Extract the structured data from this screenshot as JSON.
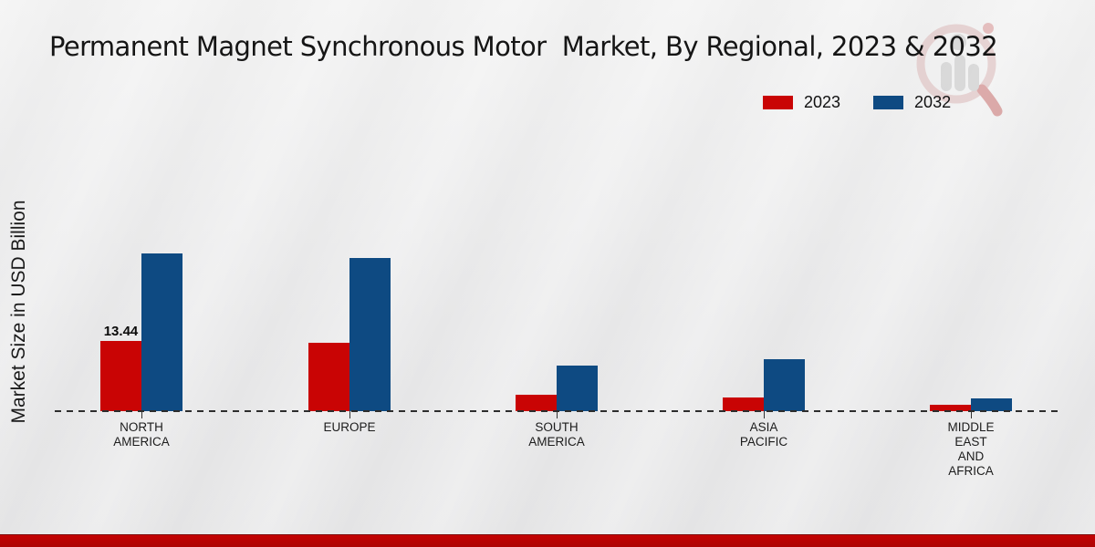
{
  "title": "Permanent Magnet Synchronous Motor  Market, By Regional, 2023 & 2032",
  "y_axis_label": "Market Size in USD Billion",
  "legend": {
    "position": "top-right",
    "items": [
      {
        "label": "2023",
        "color": "#c90404"
      },
      {
        "label": "2032",
        "color": "#0e4a82"
      }
    ]
  },
  "watermark_icon": "magnifier-bar-chart-logo",
  "footer_color": "#b30303",
  "chart_data": {
    "type": "bar",
    "title": "Permanent Magnet Synchronous Motor  Market, By Regional, 2023 & 2032",
    "xlabel": "",
    "ylabel": "Market Size in USD Billion",
    "categories": [
      "NORTH AMERICA",
      "EUROPE",
      "SOUTH AMERICA",
      "ASIA PACIFIC",
      "MIDDLE EAST AND AFRICA"
    ],
    "category_label_lines": [
      [
        "NORTH",
        "AMERICA"
      ],
      [
        "EUROPE"
      ],
      [
        "SOUTH",
        "AMERICA"
      ],
      [
        "ASIA",
        "PACIFIC"
      ],
      [
        "MIDDLE",
        "EAST",
        "AND",
        "AFRICA"
      ]
    ],
    "series": [
      {
        "name": "2023",
        "color": "#c90404",
        "values": [
          13.44,
          13.1,
          3.1,
          2.6,
          1.2
        ]
      },
      {
        "name": "2032",
        "color": "#0e4a82",
        "values": [
          30.2,
          29.3,
          8.7,
          9.9,
          2.4
        ]
      }
    ],
    "data_labels": [
      {
        "series": "2023",
        "category": "NORTH AMERICA",
        "text": "13.44"
      }
    ],
    "ylim": [
      0,
      35
    ],
    "grid": false,
    "y_ticks_visible": false,
    "baseline_style": "dashed",
    "legend_position": "top-right",
    "note": "Only 13.44 is printed on the chart; remaining values estimated from bar heights."
  }
}
